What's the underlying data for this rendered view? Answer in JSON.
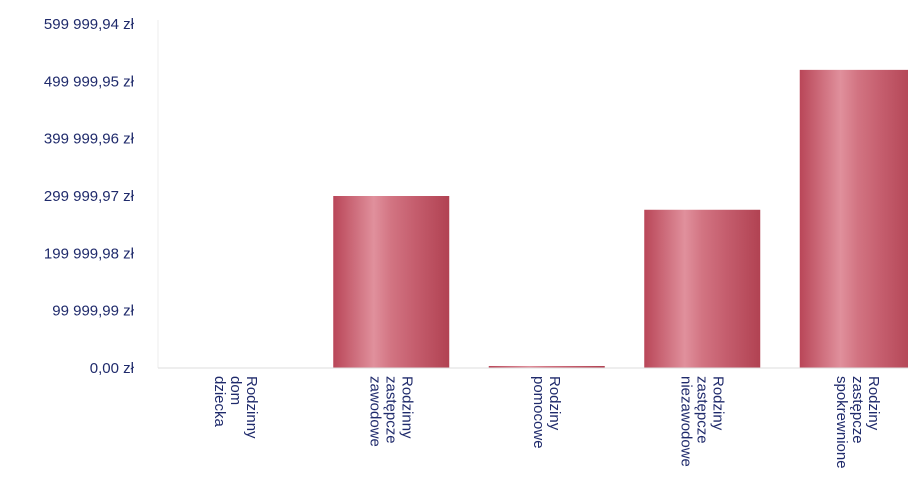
{
  "chart_data": {
    "type": "bar",
    "categories": [
      [
        "Rodzinny",
        "dom",
        "dziecka"
      ],
      [
        "Rodzinny",
        "zastępcze",
        "zawodowe"
      ],
      [
        "Rodziny",
        "pomocowe"
      ],
      [
        "Rodziny",
        "zastępcze",
        "niezawodowe"
      ],
      [
        "Rodziny",
        "zastępcze",
        "spokrewnione"
      ]
    ],
    "values": [
      0,
      300000,
      3500,
      276000,
      520000
    ],
    "ylim": [
      0,
      599999.94
    ],
    "yticks": [
      {
        "value": 0,
        "label": "0,00 zł"
      },
      {
        "value": 99999.99,
        "label": "99 999,99 zł"
      },
      {
        "value": 199999.98,
        "label": "199 999,98 zł"
      },
      {
        "value": 299999.97,
        "label": "299 999,97 zł"
      },
      {
        "value": 399999.96,
        "label": "399 999,96 zł"
      },
      {
        "value": 499999.95,
        "label": "499 999,95 zł"
      },
      {
        "value": 599999.94,
        "label": "599 999,94 zł"
      }
    ],
    "bar_color": "#c9596a",
    "grid": false,
    "legend": "none"
  }
}
